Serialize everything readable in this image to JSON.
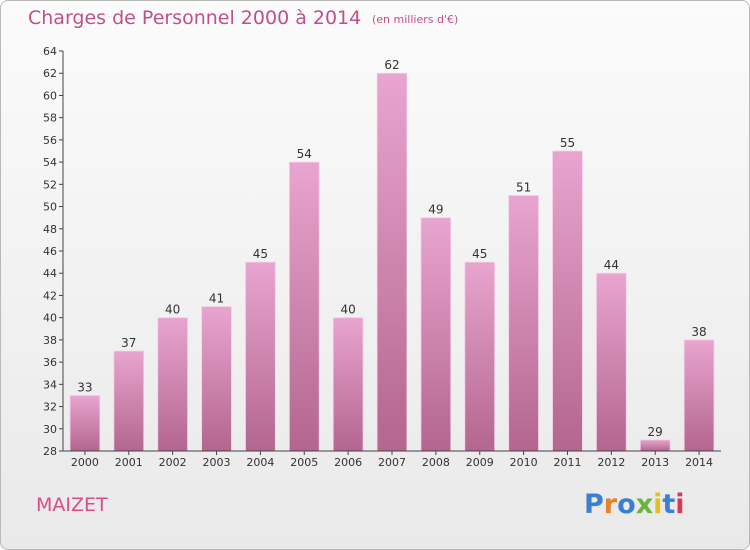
{
  "title": "Charges de Personnel 2000 à 2014",
  "unit_note": "(en milliers d'€)",
  "commune": "MAIZET",
  "brand": {
    "text": "Proxiti",
    "letter_colors": [
      "#3a7fd0",
      "#e8812c",
      "#3a7fd0",
      "#6bb33a",
      "#e0c21f",
      "#3a7fd0",
      "#d6395a"
    ]
  },
  "colors": {
    "bar_top": "#e8a5cf",
    "bar_bottom": "#b3668f",
    "title": "#c0508a",
    "axis": "#444444"
  },
  "chart_data": {
    "type": "bar",
    "title": "Charges de Personnel 2000 à 2014",
    "xlabel": "",
    "ylabel": "",
    "categories": [
      "2000",
      "2001",
      "2002",
      "2003",
      "2004",
      "2005",
      "2006",
      "2007",
      "2008",
      "2009",
      "2010",
      "2011",
      "2012",
      "2013",
      "2014"
    ],
    "values": [
      33,
      37,
      40,
      41,
      45,
      54,
      40,
      62,
      49,
      45,
      51,
      55,
      44,
      29,
      38
    ],
    "ylim": [
      28,
      64
    ],
    "ytick_step": 2,
    "grid": false,
    "legend": "none"
  }
}
